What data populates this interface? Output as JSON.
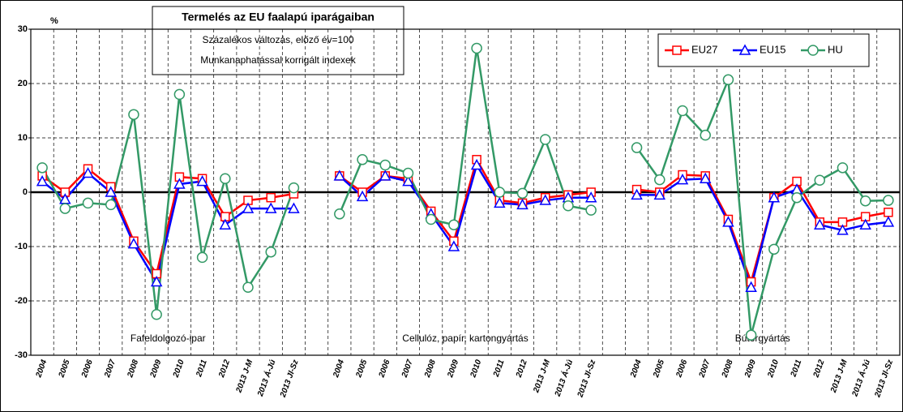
{
  "chart_data": {
    "type": "line",
    "title": "Termelés az EU faalapú iparágaiban",
    "subtitle": [
      "Százalékos változás, előző év=100",
      "Munkanaphatással korrigált indexek"
    ],
    "y_label": "%",
    "annotations": [
      "Fafeldolgozó-ipar",
      "Cellulóz, papír, kartongyártás",
      "Bútorgyártás"
    ],
    "categories": [
      "2004",
      "2005",
      "2006",
      "2007",
      "2008",
      "2009",
      "2010",
      "2011",
      "2012",
      "2013 J-M",
      "2013 Á-Jú",
      "2013 Jl-Sz",
      null,
      "2004",
      "2005",
      "2006",
      "2007",
      "2008",
      "2009",
      "2010",
      "2011",
      "2012",
      "2013 J-M",
      "2013 Á-Jú",
      "2013 Jl-Sz",
      null,
      "2004",
      "2005",
      "2006",
      "2007",
      "2008",
      "2009",
      "2010",
      "2011",
      "2012",
      "2013 J-M",
      "2013 Á-Jú",
      "2013 Jl-Sz"
    ],
    "series": [
      {
        "name": "EU27",
        "color": "#ff0000",
        "marker": "square",
        "values": [
          3,
          0,
          4.3,
          1,
          -9,
          -15,
          2.8,
          2.5,
          -4.5,
          -1.5,
          -1,
          -0.3,
          null,
          3,
          0,
          3,
          2.5,
          -3.5,
          -9,
          6,
          -1.5,
          -2,
          -1,
          -0.5,
          0,
          null,
          0.5,
          0,
          3.2,
          3,
          -5,
          -16.5,
          -1,
          2,
          -5.5,
          -5.5,
          -4.5,
          -3.7
        ]
      },
      {
        "name": "EU15",
        "color": "#0000ff",
        "marker": "triangle",
        "values": [
          2,
          -1.3,
          3.5,
          0,
          -9.5,
          -16.5,
          1.5,
          2,
          -6,
          -3,
          -3,
          -3,
          null,
          3,
          -0.8,
          3,
          2,
          -4,
          -10,
          5,
          -2,
          -2.3,
          -1.5,
          -1,
          -1,
          null,
          -0.5,
          -0.5,
          2.3,
          2.5,
          -5.5,
          -17.5,
          -1,
          0.5,
          -6,
          -7,
          -6,
          -5.5
        ]
      },
      {
        "name": "HU",
        "color": "#339966",
        "marker": "circle",
        "values": [
          4.5,
          -3,
          -2,
          -2.3,
          14.3,
          -22.5,
          18,
          -12,
          2.5,
          -17.5,
          -11,
          0.8,
          null,
          -4,
          6,
          5,
          3.5,
          -5,
          -6,
          26.5,
          0,
          -0.2,
          9.7,
          -2.5,
          -3.3,
          null,
          8.2,
          2.3,
          15,
          10.5,
          20.7,
          -26.3,
          -10.5,
          -1,
          2.2,
          4.5,
          -1.6,
          -1.5
        ]
      }
    ],
    "ylim": [
      -30,
      30
    ],
    "yticks": [
      -30,
      -20,
      -10,
      0,
      10,
      20,
      30
    ],
    "grid": true,
    "legend": "top-right"
  }
}
